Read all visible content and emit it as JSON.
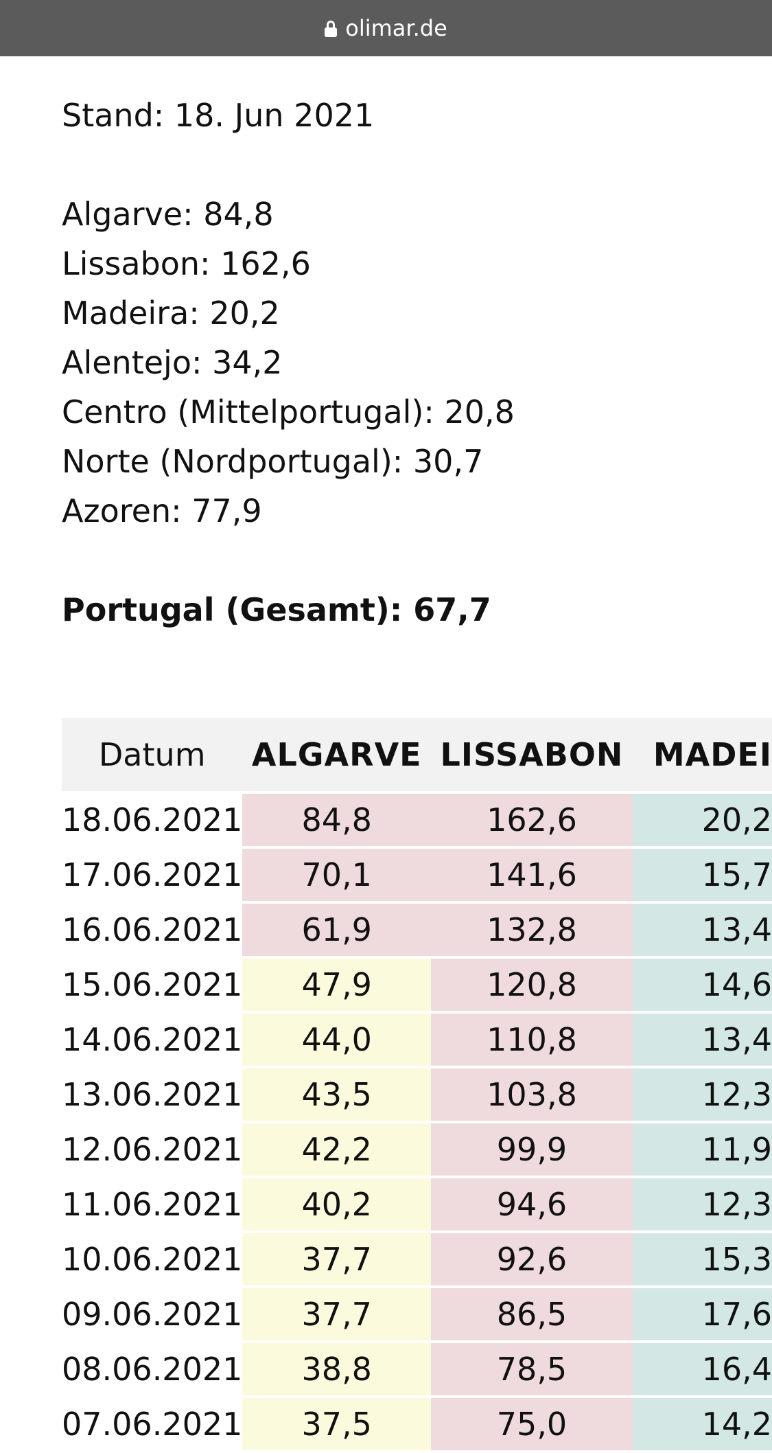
{
  "browser": {
    "url": "olimar.de",
    "icon": "lock-icon"
  },
  "stand": "Stand: 18. Jun 2021",
  "regions": [
    "Algarve: 84,8",
    "Lissabon: 162,6",
    "Madeira: 20,2",
    "Alentejo: 34,2",
    "Centro (Mittelportugal): 20,8",
    "Norte (Nordportugal): 30,7",
    "Azoren: 77,9"
  ],
  "total": "Portugal (Gesamt): 67,7",
  "table": {
    "headers": [
      "Datum",
      "ALGARVE",
      "LISSABON",
      "MADEI"
    ],
    "colors": {
      "red": "#efdadd",
      "yellow": "#fcfadd",
      "green": "#d3e8e5"
    },
    "rows": [
      {
        "date": "18.06.2021",
        "algarve": "84,8",
        "algarve_level": "red",
        "lissabon": "162,6",
        "lissabon_level": "red",
        "madeira": "20,2",
        "madeira_level": "green"
      },
      {
        "date": "17.06.2021",
        "algarve": "70,1",
        "algarve_level": "red",
        "lissabon": "141,6",
        "lissabon_level": "red",
        "madeira": "15,7",
        "madeira_level": "green"
      },
      {
        "date": "16.06.2021",
        "algarve": "61,9",
        "algarve_level": "red",
        "lissabon": "132,8",
        "lissabon_level": "red",
        "madeira": "13,4",
        "madeira_level": "green"
      },
      {
        "date": "15.06.2021",
        "algarve": "47,9",
        "algarve_level": "yellow",
        "lissabon": "120,8",
        "lissabon_level": "red",
        "madeira": "14,6",
        "madeira_level": "green"
      },
      {
        "date": "14.06.2021",
        "algarve": "44,0",
        "algarve_level": "yellow",
        "lissabon": "110,8",
        "lissabon_level": "red",
        "madeira": "13,4",
        "madeira_level": "green"
      },
      {
        "date": "13.06.2021",
        "algarve": "43,5",
        "algarve_level": "yellow",
        "lissabon": "103,8",
        "lissabon_level": "red",
        "madeira": "12,3",
        "madeira_level": "green"
      },
      {
        "date": "12.06.2021",
        "algarve": "42,2",
        "algarve_level": "yellow",
        "lissabon": "99,9",
        "lissabon_level": "red",
        "madeira": "11,9",
        "madeira_level": "green"
      },
      {
        "date": "11.06.2021",
        "algarve": "40,2",
        "algarve_level": "yellow",
        "lissabon": "94,6",
        "lissabon_level": "red",
        "madeira": "12,3",
        "madeira_level": "green"
      },
      {
        "date": "10.06.2021",
        "algarve": "37,7",
        "algarve_level": "yellow",
        "lissabon": "92,6",
        "lissabon_level": "red",
        "madeira": "15,3",
        "madeira_level": "green"
      },
      {
        "date": "09.06.2021",
        "algarve": "37,7",
        "algarve_level": "yellow",
        "lissabon": "86,5",
        "lissabon_level": "red",
        "madeira": "17,6",
        "madeira_level": "green"
      },
      {
        "date": "08.06.2021",
        "algarve": "38,8",
        "algarve_level": "yellow",
        "lissabon": "78,5",
        "lissabon_level": "red",
        "madeira": "16,4",
        "madeira_level": "green"
      },
      {
        "date": "07.06.2021",
        "algarve": "37,5",
        "algarve_level": "yellow",
        "lissabon": "75,0",
        "lissabon_level": "red",
        "madeira": "14,2",
        "madeira_level": "green"
      }
    ]
  }
}
